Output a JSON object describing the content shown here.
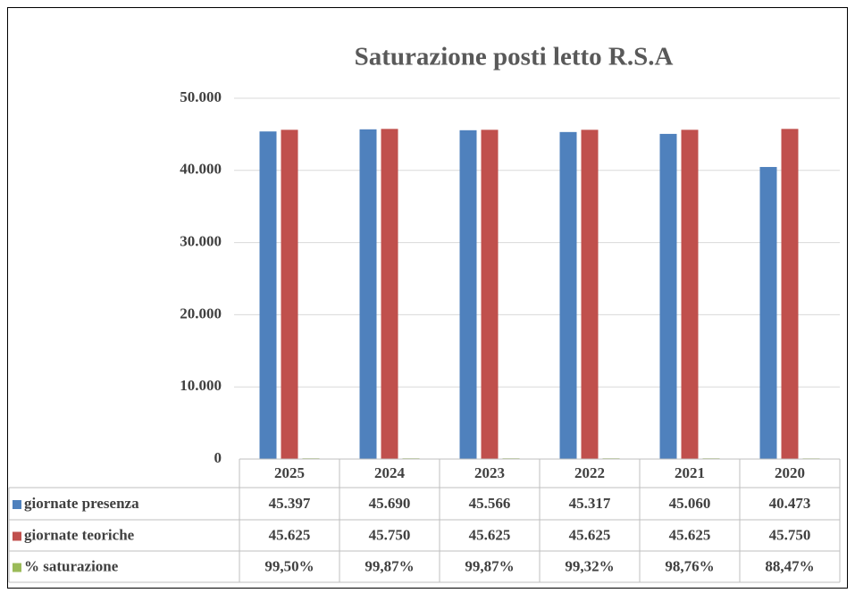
{
  "chart_data": {
    "type": "bar",
    "title": "Saturazione posti letto R.S.A",
    "categories": [
      "2025",
      "2024",
      "2023",
      "2022",
      "2021",
      "2020"
    ],
    "series": [
      {
        "name": "giornate presenza",
        "color": "#4f81bd",
        "values": [
          45397,
          45690,
          45566,
          45317,
          45060,
          40473
        ],
        "value_labels": [
          "45.397",
          "45.690",
          "45.566",
          "45.317",
          "45.060",
          "40.473"
        ]
      },
      {
        "name": "giornate teoriche",
        "color": "#c0504d",
        "values": [
          45625,
          45750,
          45625,
          45625,
          45625,
          45750
        ],
        "value_labels": [
          "45.625",
          "45.750",
          "45.625",
          "45.625",
          "45.625",
          "45.750"
        ]
      },
      {
        "name": "% saturazione",
        "color": "#9bbb59",
        "values": [
          99.5,
          99.87,
          99.87,
          99.32,
          98.76,
          88.47
        ],
        "value_labels": [
          "99,50%",
          "99,87%",
          "99,87%",
          "99,32%",
          "98,76%",
          "88,47%"
        ]
      }
    ],
    "ylim": [
      0,
      50000
    ],
    "yticks": [
      0,
      {
        "value": 10000,
        "label": "10.000"
      },
      {
        "value": 20000,
        "label": "20.000"
      },
      {
        "value": 30000,
        "label": "30.000"
      },
      {
        "value": 40000,
        "label": "40.000"
      },
      {
        "value": 50000,
        "label": "50.000"
      }
    ],
    "grid": true,
    "legend": "table"
  }
}
